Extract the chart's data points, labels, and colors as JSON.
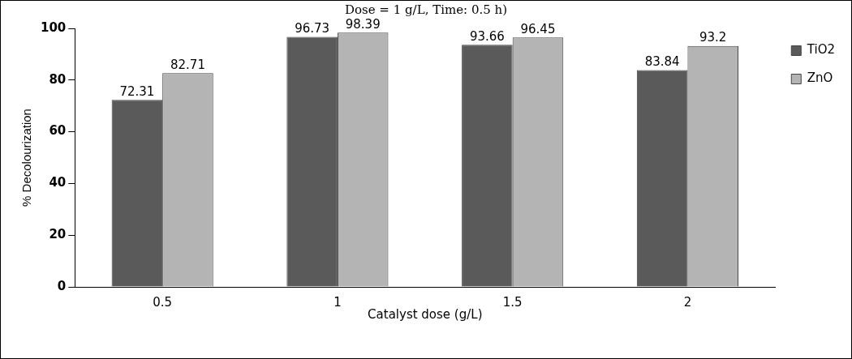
{
  "chart_data": {
    "type": "bar",
    "title": "Dose = 1 g/L, Time: 0.5 h)",
    "xlabel": "Catalyst dose (g/L)",
    "ylabel": "% Decolourization",
    "categories": [
      "0.5",
      "1",
      "1.5",
      "2"
    ],
    "series": [
      {
        "name": "TiO2",
        "color": "#5a5a5a",
        "values": [
          72.31,
          96.73,
          93.66,
          83.84
        ]
      },
      {
        "name": "ZnO",
        "color": "#b4b4b4",
        "values": [
          82.71,
          98.39,
          96.45,
          93.2
        ]
      }
    ],
    "ylim": [
      0,
      100
    ],
    "yticks": [
      0,
      20,
      40,
      60,
      80,
      100
    ],
    "grid": false,
    "legend": "top right",
    "data_labels": true
  }
}
